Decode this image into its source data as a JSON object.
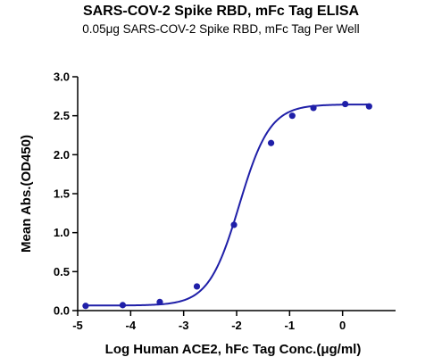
{
  "chart_data": {
    "type": "scatter",
    "title": "SARS-COV-2 Spike RBD, mFc Tag ELISA",
    "subtitle": "0.05μg SARS-COV-2 Spike RBD, mFc Tag Per Well",
    "xlabel": "Log Human ACE2, hFc Tag Conc.(μg/ml)",
    "ylabel": "Mean Abs.(OD450)",
    "xlim": [
      -5,
      1
    ],
    "ylim": [
      0,
      3.0
    ],
    "xticks": [
      -5,
      -4,
      -3,
      -2,
      -1,
      0
    ],
    "yticks": [
      0.0,
      0.5,
      1.0,
      1.5,
      2.0,
      2.5,
      3.0
    ],
    "xtick_labels": [
      "-5",
      "-4",
      "-3",
      "-2",
      "-1",
      "0"
    ],
    "ytick_labels": [
      "0.0",
      "0.5",
      "1.0",
      "1.5",
      "2.0",
      "2.5",
      "3.0"
    ],
    "series": [
      {
        "color": "#1f1fa8",
        "x": [
          -4.85,
          -4.15,
          -3.45,
          -2.75,
          -2.05,
          -1.35,
          -0.95,
          -0.55,
          0.05,
          0.5
        ],
        "y": [
          0.06,
          0.07,
          0.11,
          0.31,
          1.1,
          2.15,
          2.5,
          2.6,
          2.65,
          2.62
        ]
      }
    ],
    "fit_curve": {
      "bottom": 0.065,
      "top": 2.645,
      "logEC50": -1.95,
      "hill": 1.5
    },
    "grid": false,
    "legend": "none"
  }
}
